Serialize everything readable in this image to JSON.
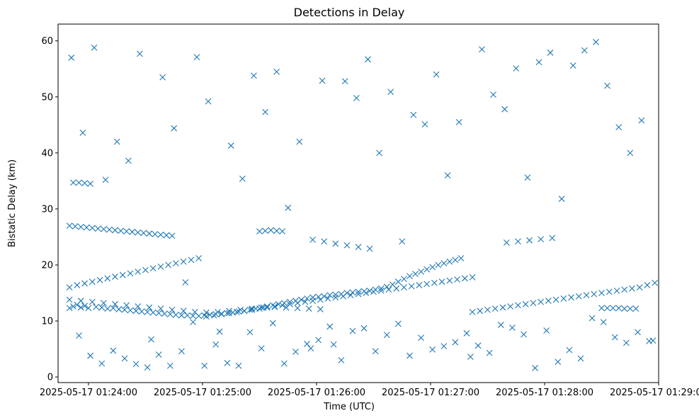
{
  "chart_data": {
    "type": "scatter",
    "title": "Detections in Delay",
    "xlabel": "Time (UTC)",
    "ylabel": "Bistatic Delay (km)",
    "x_axis": {
      "type": "time",
      "range": [
        "2025-05-17 01:23:44",
        "2025-05-17 01:29:00"
      ],
      "ticks": [
        "2025-05-17 01:24:00",
        "2025-05-17 01:25:00",
        "2025-05-17 01:26:00",
        "2025-05-17 01:27:00",
        "2025-05-17 01:28:00",
        "2025-05-17 01:29:00"
      ]
    },
    "y_axis": {
      "range": [
        -1,
        63
      ],
      "ticks": [
        0,
        10,
        20,
        30,
        40,
        50,
        60
      ]
    },
    "grid": false,
    "legend": "none",
    "marker": "x",
    "color": "#1f77b4",
    "series": [
      {
        "x": [
          "01:23:50",
          "01:23:52",
          "01:23:54",
          "01:23:56",
          "01:23:58",
          "01:24:00",
          "01:24:04",
          "01:24:07",
          "01:24:10",
          "01:24:13",
          "01:24:16",
          "01:24:19",
          "01:24:22",
          "01:24:25",
          "01:24:28",
          "01:24:31",
          "01:24:34",
          "01:24:37",
          "01:24:40",
          "01:24:43",
          "01:24:46",
          "01:24:49",
          "01:24:52",
          "01:24:55",
          "01:24:58",
          "01:25:01",
          "01:25:04",
          "01:25:07",
          "01:25:10",
          "01:25:13",
          "01:25:16",
          "01:25:19",
          "01:25:22",
          "01:25:25",
          "01:25:28",
          "01:25:31",
          "01:25:34",
          "01:25:37",
          "01:25:40",
          "01:25:43",
          "01:25:46",
          "01:25:49",
          "01:25:52",
          "01:25:55",
          "01:25:58",
          "01:26:01",
          "01:26:04",
          "01:26:07",
          "01:26:10",
          "01:26:13",
          "01:26:16",
          "01:26:19",
          "01:26:22",
          "01:26:25",
          "01:26:28",
          "01:26:31",
          "01:26:34",
          "01:26:37",
          "01:26:40",
          "01:26:43",
          "01:26:46",
          "01:26:49",
          "01:26:52",
          "01:26:55",
          "01:26:58",
          "01:27:01",
          "01:27:04",
          "01:27:07",
          "01:27:10",
          "01:27:13",
          "01:27:16",
          "01:23:50",
          "01:23:54",
          "01:23:58",
          "01:24:02",
          "01:24:06",
          "01:24:10",
          "01:24:14",
          "01:24:18",
          "01:24:22",
          "01:24:26",
          "01:24:30",
          "01:24:34",
          "01:24:38",
          "01:24:42",
          "01:24:46",
          "01:24:50",
          "01:24:54",
          "01:24:58",
          "01:25:02",
          "01:25:06",
          "01:25:10",
          "01:25:14",
          "01:25:18",
          "01:25:22",
          "01:25:26",
          "01:25:30",
          "01:25:34",
          "01:25:38",
          "01:25:42",
          "01:25:46",
          "01:25:50",
          "01:25:54",
          "01:25:58",
          "01:26:02",
          "01:26:06",
          "01:26:10",
          "01:26:14",
          "01:26:18",
          "01:26:22",
          "01:26:26",
          "01:26:30",
          "01:26:34",
          "01:26:38",
          "01:26:42",
          "01:26:46",
          "01:26:50",
          "01:26:54",
          "01:26:58",
          "01:27:02",
          "01:27:06",
          "01:27:10",
          "01:27:14",
          "01:27:18",
          "01:27:22",
          "01:27:22",
          "01:27:26",
          "01:27:30",
          "01:27:34",
          "01:27:38",
          "01:27:42",
          "01:27:46",
          "01:27:50",
          "01:27:54",
          "01:27:58",
          "01:28:02",
          "01:28:06",
          "01:28:10",
          "01:28:14",
          "01:28:18",
          "01:28:22",
          "01:28:26",
          "01:28:30",
          "01:28:34",
          "01:28:38",
          "01:28:42",
          "01:28:46",
          "01:28:50",
          "01:28:54",
          "01:28:58",
          "01:23:50",
          "01:23:53",
          "01:23:56",
          "01:23:59",
          "01:24:02",
          "01:24:05",
          "01:24:08",
          "01:24:11",
          "01:24:14",
          "01:24:17",
          "01:24:20",
          "01:24:23",
          "01:24:26",
          "01:24:29",
          "01:24:32",
          "01:24:35",
          "01:24:38",
          "01:24:41",
          "01:24:44",
          "01:23:50",
          "01:23:56",
          "01:24:02",
          "01:24:08",
          "01:24:14",
          "01:24:20",
          "01:24:26",
          "01:24:32",
          "01:24:38",
          "01:24:44",
          "01:24:50",
          "01:24:56",
          "01:25:02",
          "01:25:08",
          "01:25:14",
          "01:25:20",
          "01:25:26",
          "01:25:32",
          "01:25:38",
          "01:25:44",
          "01:25:50",
          "01:25:56",
          "01:26:02",
          "01:23:52",
          "01:23:55",
          "01:23:58",
          "01:24:01",
          "01:25:30",
          "01:25:33",
          "01:25:36",
          "01:25:39",
          "01:25:42",
          "01:25:58",
          "01:26:04",
          "01:26:10",
          "01:26:16",
          "01:26:22",
          "01:26:28",
          "01:27:40",
          "01:27:46",
          "01:27:52",
          "01:27:58",
          "01:28:04",
          "01:28:30",
          "01:28:33",
          "01:28:36",
          "01:28:39",
          "01:28:42",
          "01:28:45",
          "01:28:48",
          "01:23:51",
          "01:23:57",
          "01:24:03",
          "01:24:09",
          "01:24:15",
          "01:24:21",
          "01:24:27",
          "01:24:33",
          "01:24:39",
          "01:24:45",
          "01:24:51",
          "01:24:57",
          "01:25:03",
          "01:25:09",
          "01:25:15",
          "01:25:21",
          "01:25:27",
          "01:25:33",
          "01:25:39",
          "01:25:45",
          "01:25:51",
          "01:25:57",
          "01:26:03",
          "01:26:09",
          "01:26:15",
          "01:26:21",
          "01:26:27",
          "01:26:33",
          "01:26:39",
          "01:26:45",
          "01:26:51",
          "01:26:57",
          "01:27:03",
          "01:27:09",
          "01:27:15",
          "01:27:21",
          "01:27:27",
          "01:27:33",
          "01:27:39",
          "01:27:45",
          "01:27:51",
          "01:27:57",
          "01:28:03",
          "01:28:09",
          "01:28:15",
          "01:28:21",
          "01:28:27",
          "01:28:33",
          "01:28:39",
          "01:28:45",
          "01:28:51",
          "01:28:57",
          "01:23:55",
          "01:24:01",
          "01:24:07",
          "01:24:13",
          "01:24:19",
          "01:24:25",
          "01:24:31",
          "01:24:37",
          "01:24:43",
          "01:24:49",
          "01:24:55",
          "01:25:01",
          "01:25:07",
          "01:25:13",
          "01:25:19",
          "01:25:25",
          "01:25:31",
          "01:25:37",
          "01:25:43",
          "01:25:49",
          "01:25:55",
          "01:26:01",
          "01:26:07",
          "01:26:13",
          "01:26:19",
          "01:26:25",
          "01:26:31",
          "01:26:37",
          "01:26:43",
          "01:26:49",
          "01:26:55",
          "01:27:01",
          "01:27:07",
          "01:27:13",
          "01:27:19",
          "01:27:25",
          "01:27:31",
          "01:27:37",
          "01:27:43",
          "01:27:49",
          "01:27:55",
          "01:28:01",
          "01:28:07",
          "01:28:13",
          "01:28:19",
          "01:28:25",
          "01:28:31",
          "01:28:37",
          "01:28:43",
          "01:28:49",
          "01:28:55"
        ],
        "y": [
          12.3,
          12.6,
          12.9,
          12.4,
          12.7,
          12.3,
          12.5,
          12.4,
          12.2,
          12.3,
          12.1,
          12.0,
          11.9,
          11.8,
          11.7,
          11.6,
          11.5,
          11.4,
          11.3,
          11.2,
          11.1,
          11.0,
          11.0,
          10.9,
          10.9,
          11.0,
          11.1,
          11.2,
          11.3,
          11.4,
          11.5,
          11.7,
          11.8,
          12.0,
          12.2,
          12.4,
          12.6,
          12.8,
          13.0,
          13.2,
          13.4,
          13.6,
          13.8,
          14.0,
          14.2,
          14.3,
          14.4,
          14.6,
          14.7,
          14.8,
          15.0,
          15.1,
          15.2,
          15.3,
          15.4,
          15.6,
          15.8,
          16.1,
          16.5,
          17.0,
          17.5,
          18.0,
          18.4,
          18.8,
          19.2,
          19.6,
          20.0,
          20.3,
          20.6,
          20.9,
          21.2,
          16.0,
          16.4,
          16.7,
          17.0,
          17.3,
          17.6,
          17.9,
          18.2,
          18.5,
          18.8,
          19.1,
          19.4,
          19.7,
          20.0,
          20.3,
          20.6,
          20.9,
          21.2,
          10.8,
          11.0,
          11.2,
          11.4,
          11.6,
          11.8,
          12.0,
          12.2,
          12.4,
          12.6,
          12.8,
          13.0,
          13.2,
          13.4,
          13.6,
          13.8,
          14.0,
          14.2,
          14.4,
          14.6,
          14.8,
          15.0,
          15.2,
          15.4,
          15.6,
          15.8,
          16.0,
          16.2,
          16.4,
          16.6,
          16.8,
          17.0,
          17.2,
          17.4,
          17.6,
          17.8,
          11.6,
          11.8,
          12.0,
          12.2,
          12.4,
          12.6,
          12.8,
          13.0,
          13.2,
          13.4,
          13.6,
          13.8,
          14.0,
          14.2,
          14.4,
          14.6,
          14.8,
          15.0,
          15.2,
          15.4,
          15.6,
          15.8,
          16.0,
          16.4,
          16.8,
          27.0,
          26.9,
          26.8,
          26.7,
          26.6,
          26.5,
          26.4,
          26.3,
          26.2,
          26.1,
          26.0,
          25.9,
          25.8,
          25.7,
          25.6,
          25.5,
          25.4,
          25.3,
          25.2,
          13.8,
          13.6,
          13.4,
          13.2,
          13.0,
          12.8,
          12.6,
          12.4,
          12.2,
          12.0,
          11.8,
          11.6,
          11.5,
          11.6,
          11.8,
          12.0,
          12.2,
          12.4,
          12.5,
          12.4,
          12.3,
          12.2,
          12.1,
          34.7,
          34.7,
          34.6,
          34.5,
          26.0,
          26.1,
          26.2,
          26.1,
          26.0,
          24.5,
          24.2,
          23.8,
          23.5,
          23.2,
          22.9,
          24.0,
          24.2,
          24.4,
          24.6,
          24.8,
          12.3,
          12.3,
          12.3,
          12.3,
          12.2,
          12.2,
          12.2,
          57.0,
          43.6,
          58.8,
          35.2,
          42.0,
          38.6,
          57.7,
          6.7,
          53.5,
          44.4,
          16.9,
          57.1,
          49.2,
          8.1,
          41.3,
          35.4,
          53.8,
          47.3,
          54.5,
          30.2,
          42.0,
          5.1,
          52.9,
          5.8,
          52.8,
          49.8,
          56.7,
          40.0,
          50.9,
          24.2,
          46.8,
          45.1,
          54.0,
          36.0,
          45.5,
          3.6,
          58.5,
          50.4,
          47.8,
          55.1,
          35.6,
          56.2,
          57.9,
          31.8,
          55.6,
          58.3,
          59.8,
          52.0,
          44.6,
          40.0,
          45.8,
          6.5,
          7.4,
          3.8,
          2.4,
          4.7,
          3.3,
          2.3,
          1.7,
          4.0,
          2.0,
          4.6,
          9.8,
          2.0,
          5.8,
          2.5,
          2.0,
          8.0,
          5.1,
          9.6,
          2.4,
          4.5,
          5.9,
          6.6,
          9.0,
          3.0,
          8.2,
          8.7,
          4.6,
          7.5,
          9.5,
          3.8,
          7.0,
          4.9,
          5.5,
          6.2,
          7.8,
          5.6,
          4.3,
          9.3,
          8.8,
          7.6,
          1.6,
          8.3,
          2.7,
          4.8,
          3.3,
          10.5,
          9.8,
          7.1,
          6.1,
          8.0,
          6.4
        ]
      }
    ]
  }
}
